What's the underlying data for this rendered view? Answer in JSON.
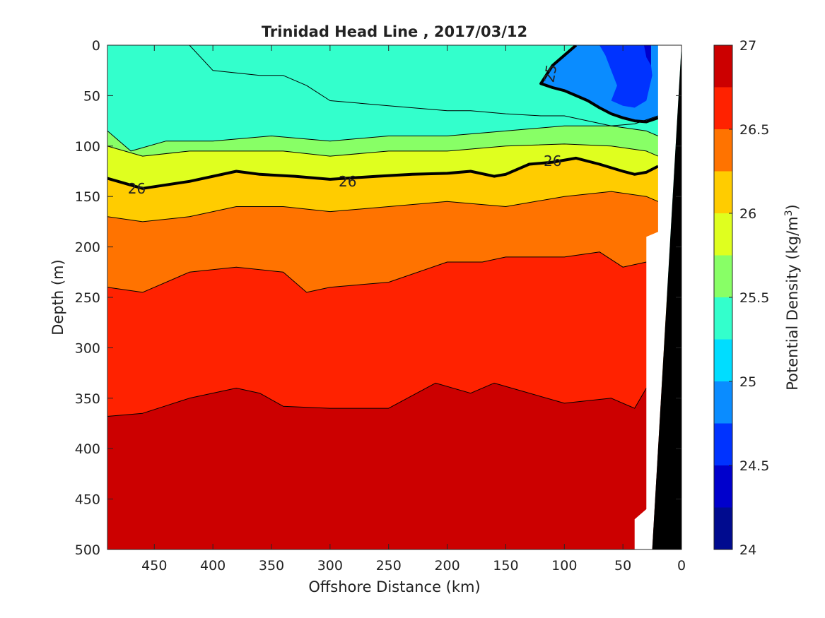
{
  "chart_data": {
    "type": "heatmap",
    "subtype": "filled-contour",
    "title": "Trinidad Head Line , 2017/03/12",
    "xlabel": "Offshore Distance (km)",
    "ylabel": "Depth (m)",
    "xlim": [
      490,
      0
    ],
    "ylim": [
      0,
      500
    ],
    "x_reversed": true,
    "y_reversed": true,
    "x_ticks": [
      450,
      400,
      350,
      300,
      250,
      200,
      150,
      100,
      50,
      0
    ],
    "y_ticks": [
      0,
      50,
      100,
      150,
      200,
      250,
      300,
      350,
      400,
      450,
      500
    ],
    "colorbar": {
      "label": "Potential Density (kg/m",
      "label_sup": "3",
      "label_end": ")",
      "range": [
        24,
        27
      ],
      "ticks": [
        24,
        24.5,
        25,
        25.5,
        26,
        26.5,
        27
      ],
      "levels": [
        24,
        24.25,
        24.5,
        24.75,
        25,
        25.25,
        25.5,
        25.75,
        26,
        26.25,
        26.5,
        26.75,
        27
      ],
      "colors": [
        "#000b8f",
        "#0000cc",
        "#0033ff",
        "#0a8cff",
        "#00ddff",
        "#33ffcc",
        "#88ff66",
        "#dfff1f",
        "#ffcc00",
        "#ff7300",
        "#ff2200",
        "#cc0000"
      ]
    },
    "contour_isolines": [
      {
        "level": 25.25,
        "x": [
          420,
          400,
          360,
          340,
          320,
          300,
          250,
          200,
          180,
          150,
          120,
          100,
          80,
          60,
          40,
          20
        ],
        "y": [
          0,
          25,
          30,
          30,
          40,
          55,
          60,
          65,
          65,
          68,
          70,
          70,
          75,
          80,
          78,
          70
        ]
      },
      {
        "level": 25.5,
        "x": [
          490,
          470,
          440,
          400,
          350,
          300,
          250,
          200,
          150,
          100,
          60,
          30,
          20
        ],
        "y": [
          85,
          105,
          95,
          95,
          90,
          95,
          90,
          90,
          85,
          80,
          80,
          85,
          90
        ]
      },
      {
        "level": 25.75,
        "x": [
          490,
          460,
          420,
          380,
          340,
          300,
          250,
          200,
          150,
          100,
          60,
          30,
          20
        ],
        "y": [
          100,
          110,
          105,
          105,
          105,
          110,
          105,
          105,
          100,
          98,
          100,
          105,
          110
        ]
      },
      {
        "level": 26.25,
        "x": [
          490,
          460,
          420,
          380,
          340,
          300,
          250,
          200,
          150,
          100,
          60,
          30,
          20
        ],
        "y": [
          170,
          175,
          170,
          160,
          160,
          165,
          160,
          155,
          160,
          150,
          145,
          150,
          155
        ]
      },
      {
        "level": 26.5,
        "x": [
          490,
          460,
          420,
          380,
          340,
          320,
          300,
          250,
          200,
          170,
          150,
          100,
          70,
          50,
          30
        ],
        "y": [
          240,
          245,
          225,
          220,
          225,
          245,
          240,
          235,
          215,
          215,
          210,
          210,
          205,
          220,
          215
        ]
      },
      {
        "level": 26.75,
        "x": [
          490,
          460,
          420,
          380,
          360,
          340,
          300,
          250,
          210,
          180,
          160,
          100,
          60,
          40,
          30
        ],
        "y": [
          368,
          365,
          350,
          340,
          345,
          358,
          360,
          360,
          335,
          345,
          335,
          355,
          350,
          360,
          340
        ]
      }
    ],
    "labeled_contours": [
      {
        "label": "26",
        "level": 26,
        "x": [
          490,
          460,
          420,
          380,
          360,
          330,
          300,
          260,
          230,
          200,
          180,
          160,
          150,
          130,
          110,
          90,
          70,
          50,
          40,
          30,
          20
        ],
        "y": [
          132,
          142,
          135,
          125,
          128,
          130,
          133,
          130,
          128,
          127,
          125,
          130,
          128,
          118,
          116,
          112,
          118,
          125,
          128,
          126,
          120
        ]
      },
      {
        "label": "25",
        "level": 25,
        "x": [
          90,
          100,
          110,
          120,
          110,
          100,
          90,
          80,
          70,
          60,
          50,
          40,
          30,
          20
        ],
        "y": [
          0,
          10,
          20,
          38,
          42,
          45,
          50,
          55,
          62,
          68,
          72,
          75,
          76,
          72
        ]
      }
    ],
    "contour_label_positions": [
      {
        "label": "26",
        "x": 465,
        "y": 142
      },
      {
        "label": "26",
        "x": 285,
        "y": 135
      },
      {
        "label": "26",
        "x": 110,
        "y": 115
      },
      {
        "label": "25",
        "x": 112,
        "y": 28
      }
    ],
    "bathymetry": {
      "color": "#000000",
      "surface_edge": [
        {
          "x": 20,
          "depth": 0
        },
        {
          "x": 0,
          "depth": 0
        }
      ],
      "seafloor_edge": [
        {
          "x": 0,
          "depth": 0
        },
        {
          "x": 25,
          "depth": 500
        }
      ]
    },
    "no_data_mask": {
      "color": "#ffffff",
      "outline": [
        {
          "x": 20,
          "depth": 0
        },
        {
          "x": 0,
          "depth": 0
        },
        {
          "x": 25,
          "depth": 500
        },
        {
          "x": 40,
          "depth": 500
        },
        {
          "x": 40,
          "depth": 470
        },
        {
          "x": 30,
          "depth": 460
        },
        {
          "x": 30,
          "depth": 190
        },
        {
          "x": 20,
          "depth": 185
        }
      ]
    }
  }
}
